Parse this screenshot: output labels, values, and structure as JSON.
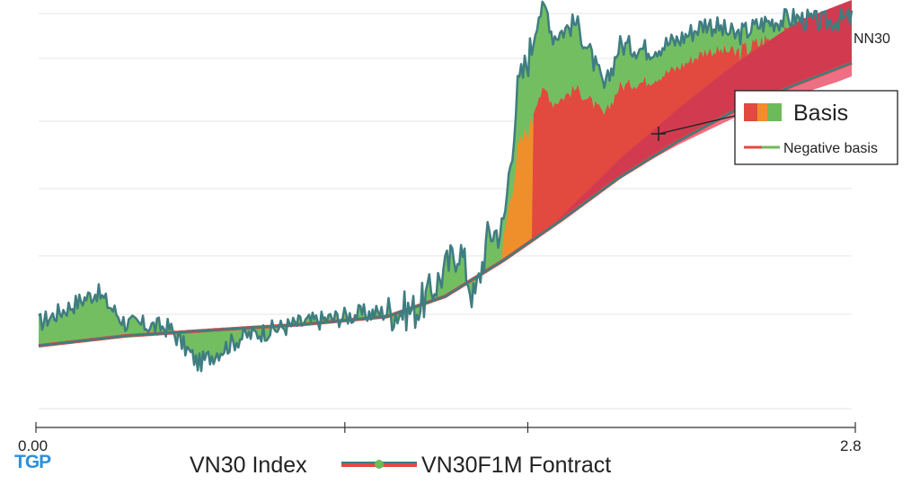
{
  "colors": {
    "green": "#6dba5a",
    "orange": "#ef8f2c",
    "red": "#e2493f",
    "crimson": "#d23b4f",
    "pink": "#ee6f84",
    "line": "#3f7d80",
    "grid": "#e6e6e6",
    "axis": "#333333"
  },
  "logo": "TGP",
  "chart_data": {
    "type": "area",
    "title": "",
    "series_label": "NN30",
    "xlim": [
      0,
      2.8
    ],
    "ylim": [
      0,
      100
    ],
    "x_tick_labels": [
      "0.00",
      "",
      "",
      "2.8"
    ],
    "x_tick_positions": [
      0,
      1.07,
      1.7,
      2.8
    ],
    "y_gridlines": [
      9,
      30,
      43,
      58,
      73,
      87,
      97
    ],
    "legend_top": {
      "basis": "Basis",
      "negative_basis": "Negative basis"
    },
    "legend_bottom": {
      "index": "VN30 Index",
      "contract": "VN30F1M Fontract"
    },
    "series": [
      {
        "name": "VN30 Index",
        "x": [
          0,
          0.3,
          0.6,
          0.9,
          1.2,
          1.4,
          1.6,
          1.8,
          2.0,
          2.2,
          2.4,
          2.6,
          2.8
        ],
        "values": [
          23.0,
          25.2,
          26.5,
          27.7,
          29.5,
          34.0,
          42.0,
          51.0,
          60.5,
          68.5,
          75.5,
          81.0,
          86.0
        ]
      },
      {
        "name": "VN30F1M Fontract",
        "x": [
          0,
          0.2,
          0.3,
          0.45,
          0.55,
          0.7,
          0.9,
          1.1,
          1.3,
          1.35,
          1.45,
          1.5,
          1.55,
          1.6,
          1.65,
          1.7,
          1.72,
          1.75,
          1.77,
          1.8,
          1.85,
          1.9,
          1.95,
          2.0,
          2.1,
          2.2,
          2.3,
          2.4,
          2.5,
          2.6,
          2.7,
          2.8
        ],
        "values": [
          28,
          35,
          28,
          27,
          19,
          25,
          28,
          30,
          31,
          35,
          45,
          33,
          48,
          49,
          80,
          90,
          97,
          98,
          92,
          93,
          95,
          88,
          80,
          90,
          89,
          91,
          95,
          92,
          95,
          96,
          95,
          96
        ]
      }
    ]
  }
}
